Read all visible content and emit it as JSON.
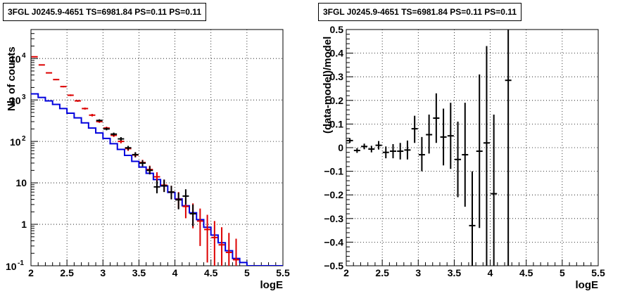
{
  "chart_data": [
    {
      "type": "line",
      "title": "3FGL J0245.9-4651 TS=6981.84 PS=0.11 PS=0.11",
      "xlabel": "logE",
      "ylabel": "Nb of counts",
      "xlim": [
        2,
        5.5
      ],
      "ylim": [
        0.1,
        50000
      ],
      "y_scale": "log",
      "grid": true,
      "x_ticks": [
        "2",
        "2.5",
        "3",
        "3.5",
        "4",
        "4.5",
        "5",
        "5.5"
      ],
      "y_ticks": [
        {
          "value": 0.1,
          "base": "10",
          "exp": "-1"
        },
        {
          "value": 1,
          "base": "1",
          "exp": ""
        },
        {
          "value": 10,
          "base": "10",
          "exp": ""
        },
        {
          "value": 100,
          "base": "10",
          "exp": "2"
        },
        {
          "value": 1000,
          "base": "10",
          "exp": "3"
        },
        {
          "value": 10000,
          "base": "10",
          "exp": "4"
        }
      ],
      "bin_edges": [
        2.0,
        2.1,
        2.2,
        2.3,
        2.4,
        2.5,
        2.6,
        2.7,
        2.8,
        2.9,
        3.0,
        3.1,
        3.2,
        3.3,
        3.4,
        3.5,
        3.6,
        3.7,
        3.8,
        3.9,
        4.0,
        4.1,
        4.2,
        4.3,
        4.4,
        4.5,
        4.6,
        4.7,
        4.8,
        4.9,
        5.0,
        5.1,
        5.2,
        5.3,
        5.4,
        5.5
      ],
      "series": [
        {
          "color": "#0000dd",
          "style": "step",
          "values": [
            1400,
            1150,
            950,
            780,
            620,
            480,
            370,
            280,
            210,
            160,
            118,
            88,
            64,
            46,
            33,
            24,
            17,
            12,
            8.4,
            5.9,
            4.1,
            2.8,
            1.9,
            1.3,
            0.85,
            0.55,
            0.36,
            0.23,
            0.15,
            0.12,
            0.1,
            0.1,
            0.1,
            0.1,
            0.1
          ]
        },
        {
          "color": "#dd0000",
          "style": "errorbar",
          "points": [
            {
              "x": 2.05,
              "y": 11000,
              "lo": 10800,
              "hi": 11200
            },
            {
              "x": 2.15,
              "y": 7000,
              "lo": 6850,
              "hi": 7150
            },
            {
              "x": 2.25,
              "y": 4500,
              "lo": 4380,
              "hi": 4620
            },
            {
              "x": 2.35,
              "y": 3100,
              "lo": 3000,
              "hi": 3200
            },
            {
              "x": 2.45,
              "y": 2100,
              "lo": 2020,
              "hi": 2180
            },
            {
              "x": 2.55,
              "y": 1300,
              "lo": 1240,
              "hi": 1360
            },
            {
              "x": 2.65,
              "y": 950,
              "lo": 900,
              "hi": 1000
            },
            {
              "x": 2.75,
              "y": 620,
              "lo": 585,
              "hi": 655
            },
            {
              "x": 2.85,
              "y": 430,
              "lo": 400,
              "hi": 460
            },
            {
              "x": 2.95,
              "y": 300,
              "lo": 280,
              "hi": 322
            },
            {
              "x": 3.05,
              "y": 210,
              "lo": 194,
              "hi": 226
            },
            {
              "x": 3.15,
              "y": 140,
              "lo": 128,
              "hi": 152
            },
            {
              "x": 3.25,
              "y": 100,
              "lo": 90,
              "hi": 111
            },
            {
              "x": 3.35,
              "y": 67,
              "lo": 59,
              "hi": 75
            },
            {
              "x": 3.45,
              "y": 47,
              "lo": 41,
              "hi": 54
            },
            {
              "x": 3.55,
              "y": 31,
              "lo": 26,
              "hi": 36
            },
            {
              "x": 3.65,
              "y": 21,
              "lo": 17,
              "hi": 26
            },
            {
              "x": 3.75,
              "y": 14,
              "lo": 10.5,
              "hi": 18
            },
            {
              "x": 3.85,
              "y": 8.8,
              "lo": 6.2,
              "hi": 12
            },
            {
              "x": 3.95,
              "y": 6.0,
              "lo": 4.0,
              "hi": 8.5
            },
            {
              "x": 4.05,
              "y": 4.0,
              "lo": 2.4,
              "hi": 6.0
            },
            {
              "x": 4.15,
              "y": 2.7,
              "lo": 1.4,
              "hi": 4.3
            },
            {
              "x": 4.25,
              "y": 1.8,
              "lo": 0.8,
              "hi": 3.2
            },
            {
              "x": 4.35,
              "y": 1.2,
              "lo": 0.3,
              "hi": 2.4
            },
            {
              "x": 4.45,
              "y": 0.75,
              "lo": 0.12,
              "hi": 1.7
            },
            {
              "x": 4.55,
              "y": 0.48,
              "lo": 0.1,
              "hi": 1.2
            },
            {
              "x": 4.65,
              "y": 0.32,
              "lo": 0.1,
              "hi": 0.85
            },
            {
              "x": 4.75,
              "y": 0.21,
              "lo": 0.1,
              "hi": 0.62
            },
            {
              "x": 4.85,
              "y": 0.14,
              "lo": 0.1,
              "hi": 0.45
            }
          ]
        },
        {
          "color": "#000000",
          "style": "errorbar",
          "points": [
            {
              "x": 2.95,
              "y": 320,
              "lo": 300,
              "hi": 342
            },
            {
              "x": 3.05,
              "y": 200,
              "lo": 185,
              "hi": 216
            },
            {
              "x": 3.15,
              "y": 150,
              "lo": 137,
              "hi": 163
            },
            {
              "x": 3.25,
              "y": 115,
              "lo": 104,
              "hi": 127
            },
            {
              "x": 3.35,
              "y": 70,
              "lo": 62,
              "hi": 78
            },
            {
              "x": 3.45,
              "y": 48,
              "lo": 42,
              "hi": 55
            },
            {
              "x": 3.55,
              "y": 30,
              "lo": 25,
              "hi": 35
            },
            {
              "x": 3.65,
              "y": 20,
              "lo": 16,
              "hi": 25
            },
            {
              "x": 3.75,
              "y": 8.0,
              "lo": 5.6,
              "hi": 11.5
            },
            {
              "x": 3.85,
              "y": 8.5,
              "lo": 6.0,
              "hi": 12
            },
            {
              "x": 3.95,
              "y": 6.0,
              "lo": 4.0,
              "hi": 8.5
            },
            {
              "x": 4.05,
              "y": 3.9,
              "lo": 2.3,
              "hi": 5.8
            },
            {
              "x": 4.15,
              "y": 4.8,
              "lo": 3.0,
              "hi": 7.0
            },
            {
              "x": 4.25,
              "y": 1.8,
              "lo": 0.9,
              "hi": 3.0
            }
          ]
        }
      ]
    },
    {
      "type": "scatter",
      "title": "3FGL J0245.9-4651 TS=6981.84 PS=0.11 PS=0.11",
      "xlabel": "logE",
      "ylabel": "(data-model)/model",
      "xlim": [
        2,
        5.5
      ],
      "ylim": [
        -0.5,
        0.5
      ],
      "grid": true,
      "x_ticks": [
        "2",
        "2.5",
        "3",
        "3.5",
        "4",
        "4.5",
        "5",
        "5.5"
      ],
      "y_ticks": [
        "−0.5",
        "−0.4",
        "−0.3",
        "−0.2",
        "−0.1",
        "0",
        "0.1",
        "0.2",
        "0.3",
        "0.4",
        "0.5"
      ],
      "series": [
        {
          "color": "#000000",
          "style": "errorbar",
          "points": [
            {
              "x": 2.05,
              "y": 0.03,
              "lo": 0.02,
              "hi": 0.04
            },
            {
              "x": 2.15,
              "y": -0.012,
              "lo": -0.022,
              "hi": -0.002
            },
            {
              "x": 2.25,
              "y": 0.005,
              "lo": -0.007,
              "hi": 0.017
            },
            {
              "x": 2.35,
              "y": -0.006,
              "lo": -0.02,
              "hi": 0.008
            },
            {
              "x": 2.45,
              "y": 0.01,
              "lo": -0.008,
              "hi": 0.028
            },
            {
              "x": 2.55,
              "y": -0.02,
              "lo": -0.045,
              "hi": 0.005
            },
            {
              "x": 2.65,
              "y": -0.015,
              "lo": -0.045,
              "hi": 0.015
            },
            {
              "x": 2.75,
              "y": -0.015,
              "lo": -0.05,
              "hi": 0.02
            },
            {
              "x": 2.85,
              "y": -0.01,
              "lo": -0.05,
              "hi": 0.03
            },
            {
              "x": 2.95,
              "y": 0.08,
              "lo": 0.02,
              "hi": 0.135
            },
            {
              "x": 3.05,
              "y": -0.03,
              "lo": -0.1,
              "hi": 0.045
            },
            {
              "x": 3.15,
              "y": 0.055,
              "lo": -0.025,
              "hi": 0.14
            },
            {
              "x": 3.25,
              "y": 0.125,
              "lo": 0.02,
              "hi": 0.23
            },
            {
              "x": 3.35,
              "y": 0.045,
              "lo": -0.075,
              "hi": 0.165
            },
            {
              "x": 3.45,
              "y": 0.05,
              "lo": -0.09,
              "hi": 0.19
            },
            {
              "x": 3.55,
              "y": -0.05,
              "lo": -0.21,
              "hi": 0.11
            },
            {
              "x": 3.65,
              "y": -0.03,
              "lo": -0.25,
              "hi": 0.19
            },
            {
              "x": 3.75,
              "y": -0.33,
              "lo": -0.5,
              "hi": -0.1
            },
            {
              "x": 3.85,
              "y": -0.015,
              "lo": -0.34,
              "hi": 0.31
            },
            {
              "x": 3.95,
              "y": 0.02,
              "lo": -0.5,
              "hi": 0.43
            },
            {
              "x": 4.05,
              "y": -0.195,
              "lo": -0.5,
              "hi": 0.14
            },
            {
              "x": 4.25,
              "y": 0.285,
              "lo": -0.5,
              "hi": 0.5
            }
          ]
        }
      ]
    }
  ]
}
